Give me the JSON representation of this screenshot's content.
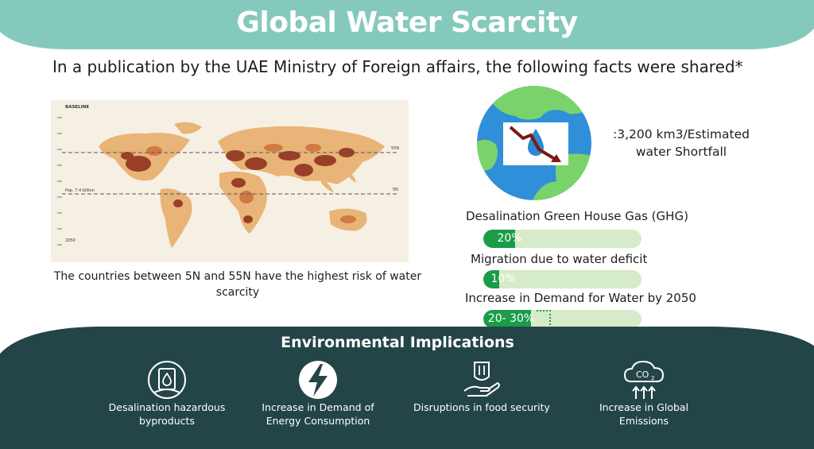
{
  "title": "Global Water Scarcity",
  "subtitle": "In a publication by the UAE Ministry of Foreign affairs, the following facts were shared*",
  "map": {
    "header": "BASELINE",
    "lat_top": "55N",
    "lat_bottom": "5N",
    "pop_label": "Pop. 7.4 billion",
    "year": "2050",
    "caption": "The countries between 5N and 55N have the highest risk of water scarcity"
  },
  "shortfall": {
    "line1": ":3,200 km3/Estimated",
    "line2": "water Shortfall",
    "icon": "water-drop-decline-icon"
  },
  "stats": [
    {
      "label": "Desalination Green House Gas (GHG)",
      "value_text": "20%",
      "fraction": 0.2
    },
    {
      "label": "Migration due to water deficit",
      "value_text": "10%",
      "fraction": 0.1
    },
    {
      "label": "Increase in Demand for Water by 2050",
      "value_text": "20- 30%",
      "fraction": 0.3
    }
  ],
  "environmental": {
    "title": "Environmental Implications",
    "items": [
      {
        "line1": "Desalination hazardous",
        "line2": "byproducts",
        "icon": "hazard-barrel-icon"
      },
      {
        "line1": "Increase in Demand of",
        "line2": "Energy Consumption",
        "icon": "lightning-icon"
      },
      {
        "line1": "Disruptions in food security",
        "line2": "",
        "icon": "food-hand-icon"
      },
      {
        "line1": "Increase in Global",
        "line2": "Emissions",
        "icon": "co2-cloud-icon"
      }
    ]
  },
  "colors": {
    "banner": "#85c9bd",
    "bottom_band": "#234548",
    "bar_fill": "#1a9c48",
    "bar_track": "#d6ebc9",
    "globe_water": "#2f8fd8",
    "globe_land": "#7ad36a"
  }
}
